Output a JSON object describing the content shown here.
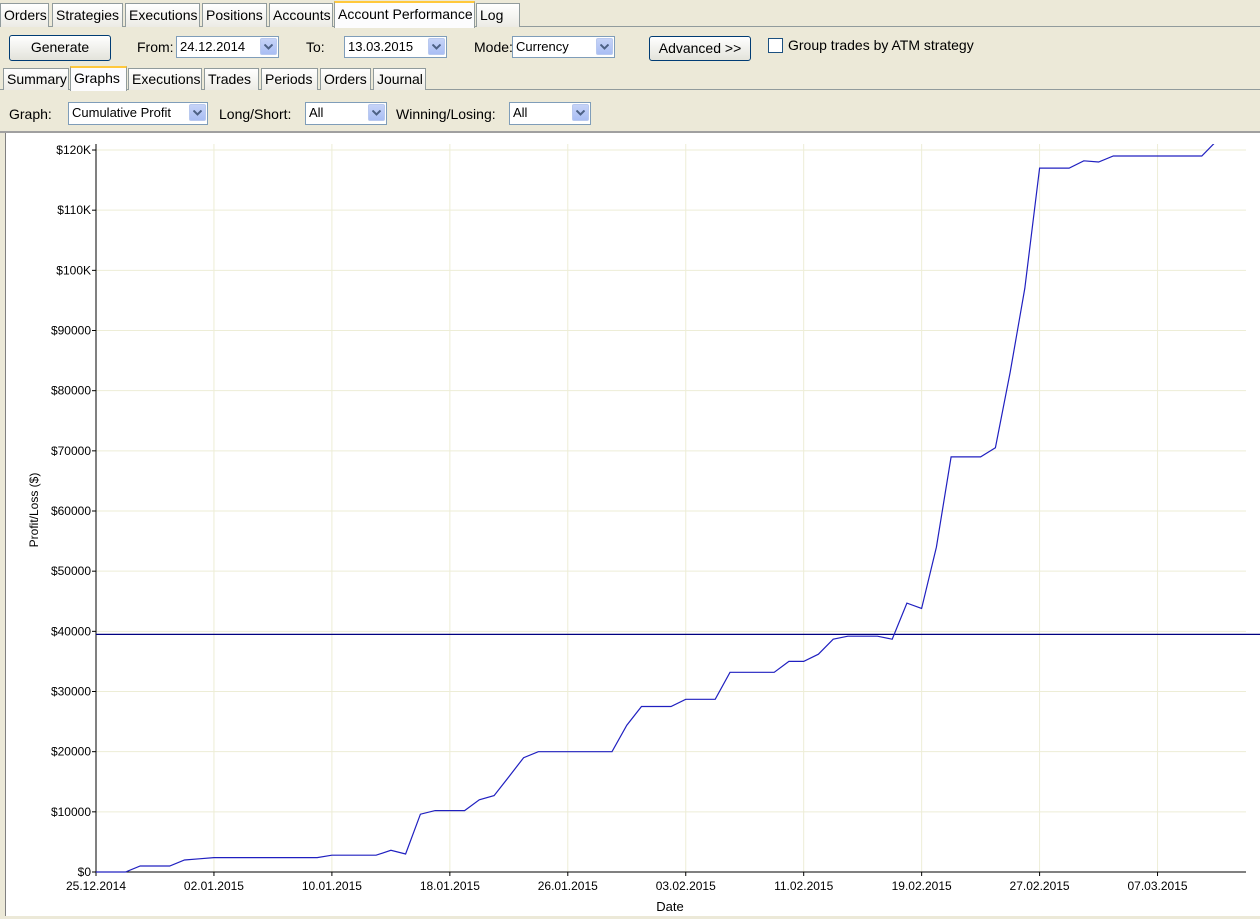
{
  "top_tabs": [
    "Orders",
    "Strategies",
    "Executions",
    "Positions",
    "Accounts",
    "Account Performance",
    "Log"
  ],
  "toolbar": {
    "generate_label": "Generate",
    "from_label": "From:",
    "from_value": "24.12.2014",
    "to_label": "To:",
    "to_value": "13.03.2015",
    "mode_label": "Mode:",
    "mode_value": "Currency",
    "advanced_label": "Advanced >>",
    "group_checkbox_label": "Group trades by ATM strategy",
    "group_checked": false
  },
  "sub_tabs": [
    "Summary",
    "Graphs",
    "Executions",
    "Trades",
    "Periods",
    "Orders",
    "Journal"
  ],
  "graph_options": {
    "graph_label": "Graph:",
    "graph_value": "Cumulative Profit",
    "longshort_label": "Long/Short:",
    "longshort_value": "All",
    "winlose_label": "Winning/Losing:",
    "winlose_value": "All"
  },
  "colors": {
    "line": "#2020C0",
    "avg_line": "#000080",
    "grid": "#EDEDD6",
    "tab_accent": "#FFC83C"
  },
  "chart_data": {
    "type": "line",
    "xlabel": "Date",
    "ylabel": "Profit/Loss ($)",
    "x_ticks": [
      "25.12.2014",
      "02.01.2015",
      "10.01.2015",
      "18.01.2015",
      "26.01.2015",
      "03.02.2015",
      "11.02.2015",
      "19.02.2015",
      "27.02.2015",
      "07.03.2015"
    ],
    "y_ticks": [
      "$0",
      "$10000",
      "$20000",
      "$30000",
      "$40000",
      "$50000",
      "$60000",
      "$70000",
      "$80000",
      "$90000",
      "$100K",
      "$110K",
      "$120K"
    ],
    "xlim": [
      "2014-12-25",
      "2015-03-13"
    ],
    "ylim": [
      0,
      121000
    ],
    "grid": true,
    "reference_line": {
      "y": 39500
    },
    "series": [
      {
        "x": [
          "2014-12-25",
          "2014-12-27",
          "2014-12-28",
          "2014-12-29",
          "2014-12-30",
          "2014-12-31",
          "2015-01-01",
          "2015-01-02",
          "2015-01-03",
          "2015-01-04",
          "2015-01-05",
          "2015-01-06",
          "2015-01-07",
          "2015-01-08",
          "2015-01-09",
          "2015-01-10",
          "2015-01-11",
          "2015-01-12",
          "2015-01-13",
          "2015-01-14",
          "2015-01-15",
          "2015-01-16",
          "2015-01-17",
          "2015-01-18",
          "2015-01-19",
          "2015-01-20",
          "2015-01-21",
          "2015-01-22",
          "2015-01-23",
          "2015-01-24",
          "2015-01-25",
          "2015-01-26",
          "2015-01-27",
          "2015-01-28",
          "2015-01-29",
          "2015-01-30",
          "2015-01-31",
          "2015-02-01",
          "2015-02-02",
          "2015-02-03",
          "2015-02-04",
          "2015-02-05",
          "2015-02-06",
          "2015-02-07",
          "2015-02-08",
          "2015-02-09",
          "2015-02-10",
          "2015-02-11",
          "2015-02-12",
          "2015-02-13",
          "2015-02-14",
          "2015-02-15",
          "2015-02-16",
          "2015-02-17",
          "2015-02-18",
          "2015-02-19",
          "2015-02-20",
          "2015-02-21",
          "2015-02-22",
          "2015-02-23",
          "2015-02-24",
          "2015-02-25",
          "2015-02-26",
          "2015-02-27",
          "2015-02-28",
          "2015-03-01",
          "2015-03-02",
          "2015-03-03",
          "2015-03-04",
          "2015-03-05",
          "2015-03-06",
          "2015-03-07",
          "2015-03-08",
          "2015-03-09",
          "2015-03-10",
          "2015-03-11"
        ],
        "y": [
          0,
          0,
          1000,
          1000,
          1000,
          2000,
          2200,
          2400,
          2400,
          2400,
          2400,
          2400,
          2400,
          2400,
          2400,
          2800,
          2800,
          2800,
          2800,
          3600,
          3000,
          9600,
          10200,
          10200,
          10200,
          12000,
          12700,
          15800,
          19000,
          20000,
          20000,
          20000,
          20000,
          20000,
          20000,
          24400,
          27500,
          27500,
          27500,
          28700,
          28700,
          28700,
          33200,
          33200,
          33200,
          33200,
          35000,
          35000,
          36200,
          38700,
          39200,
          39200,
          39200,
          38700,
          44700,
          43800,
          54000,
          69000,
          69000,
          69000,
          70500,
          83000,
          97000,
          117000,
          117000,
          117000,
          118200,
          118000,
          119000,
          119000,
          119000,
          119000,
          119000,
          119000,
          119000,
          121500
        ]
      }
    ]
  }
}
